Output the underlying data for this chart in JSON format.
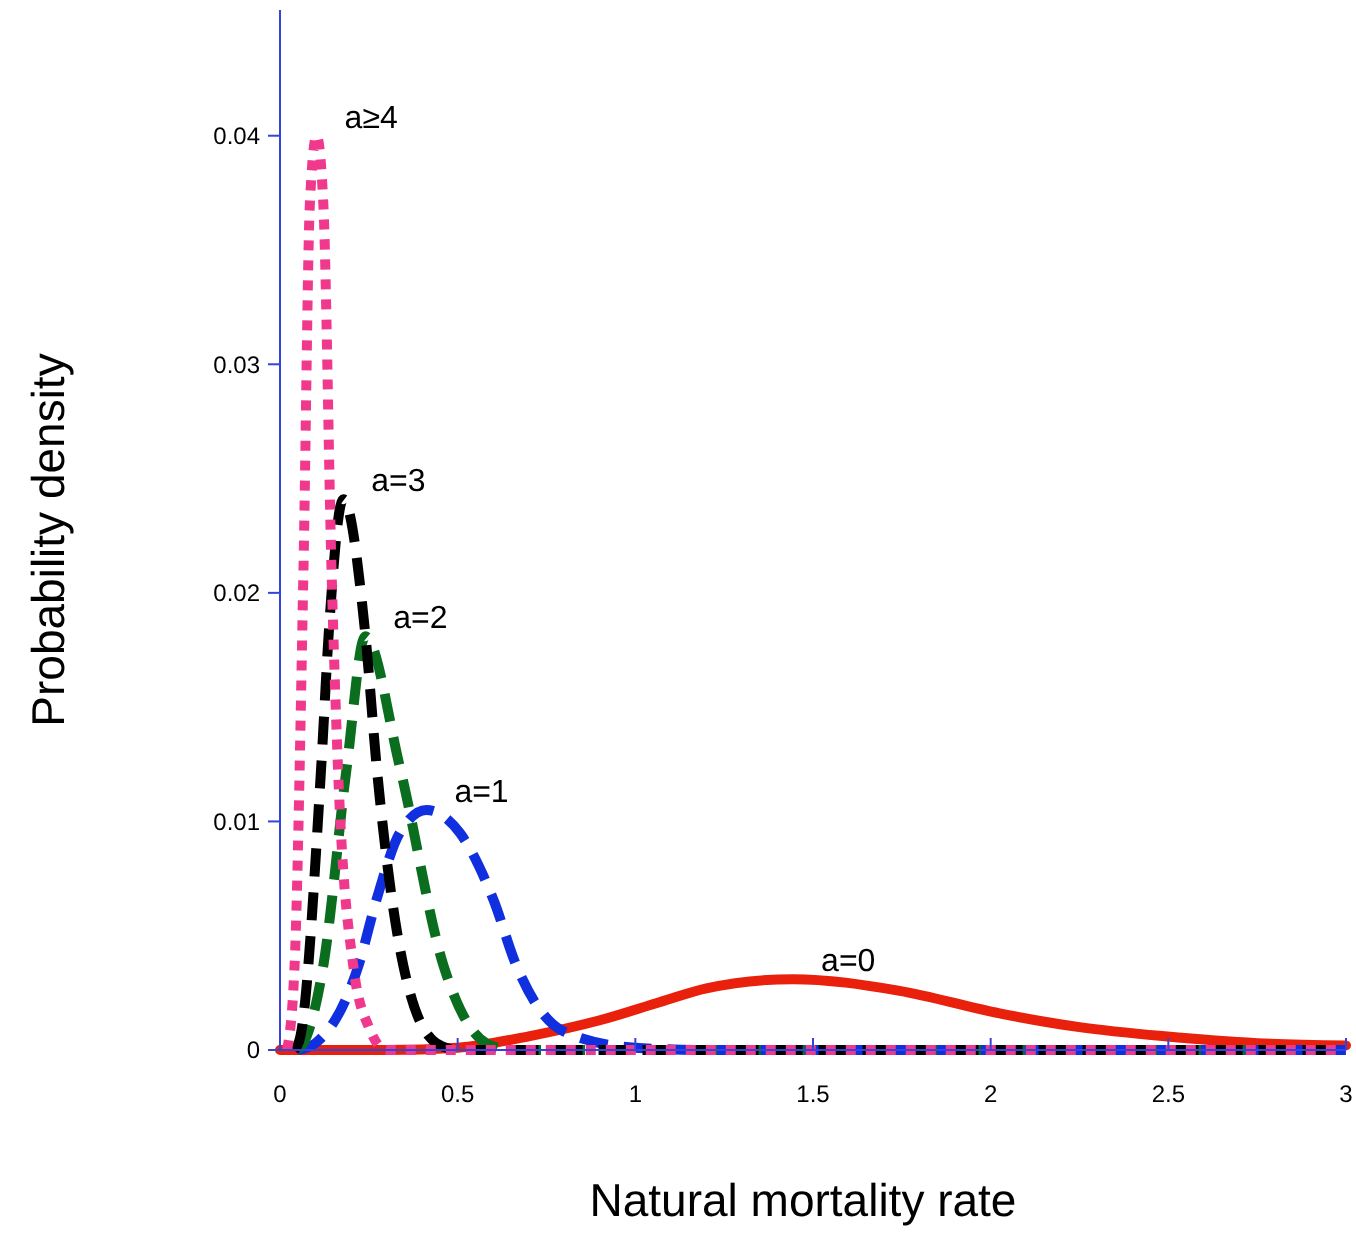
{
  "chart_data": {
    "type": "line",
    "xlabel": "Natural mortality rate",
    "ylabel": "Probability density",
    "xlim": [
      0,
      3
    ],
    "ylim": [
      0,
      0.0455
    ],
    "xticks": [
      0,
      0.5,
      1,
      1.5,
      2,
      2.5,
      3
    ],
    "yticks": [
      0,
      0.01,
      0.02,
      0.03,
      0.04
    ],
    "grid": false,
    "marker": "none",
    "series": [
      {
        "name": "a=0",
        "color": "#e8200c",
        "line_style": "solid",
        "x": [
          0,
          0.3,
          0.5,
          0.7,
          0.9,
          1.07,
          1.2,
          1.444,
          1.74,
          2.025,
          2.25,
          2.49,
          2.75,
          3
        ],
        "values": [
          0,
          0,
          0.0001,
          0.0006,
          0.0013,
          0.0021,
          0.0027,
          0.0031,
          0.0026,
          0.0016,
          0.001,
          0.0006,
          0.0003,
          0.0002
        ]
      },
      {
        "name": "a=1",
        "color": "#1030e0",
        "line_style": "dashed",
        "x": [
          0.05,
          0.1,
          0.221,
          0.272,
          0.337,
          0.412,
          0.506,
          0.6,
          0.665,
          0.8,
          1,
          1.2,
          3
        ],
        "values": [
          0,
          0.0003,
          0.0037,
          0.0066,
          0.0095,
          0.0105,
          0.0095,
          0.0066,
          0.0037,
          0.0008,
          0.0001,
          0,
          0
        ]
      },
      {
        "name": "a=2",
        "color": "#0a6e1e",
        "line_style": "dashed",
        "x": [
          0.05,
          0.066,
          0.122,
          0.188,
          0.24,
          0.337,
          0.46,
          0.58,
          0.65,
          3
        ],
        "values": [
          0,
          0.0003,
          0.0037,
          0.0124,
          0.0181,
          0.0124,
          0.0037,
          0.0003,
          0,
          0
        ]
      },
      {
        "name": "a=3",
        "color": "#000000",
        "line_style": "dashed",
        "x": [
          0.04,
          0.056,
          0.116,
          0.137,
          0.178,
          0.24,
          0.272,
          0.347,
          0.44,
          0.5,
          3
        ],
        "values": [
          0,
          0.0005,
          0.0124,
          0.0182,
          0.0241,
          0.0182,
          0.0124,
          0.0037,
          0.0003,
          0,
          0
        ]
      },
      {
        "name": "a≥4",
        "color": "#f0388c",
        "line_style": "dotted",
        "x": [
          0.02,
          0.041,
          0.066,
          0.084,
          0.103,
          0.122,
          0.145,
          0.163,
          0.206,
          0.25,
          0.3,
          3
        ],
        "values": [
          0,
          0.0037,
          0.021,
          0.037,
          0.04,
          0.037,
          0.021,
          0.0124,
          0.0037,
          0.001,
          0,
          0
        ]
      }
    ]
  }
}
